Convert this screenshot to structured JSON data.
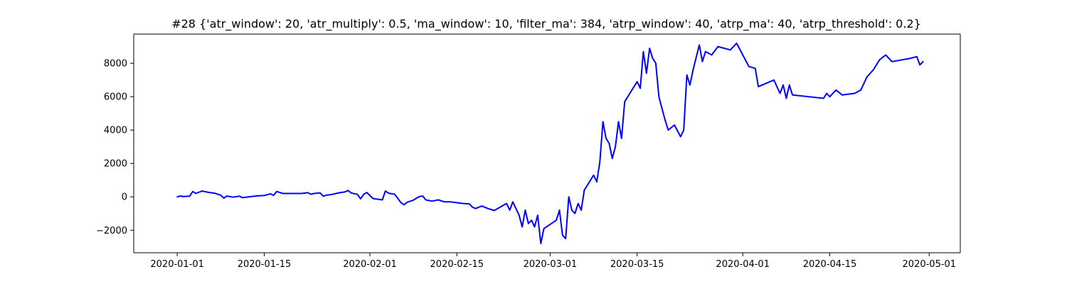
{
  "chart_data": {
    "type": "line",
    "title": "#28 {'atr_window': 20, 'atr_multiply': 0.5, 'ma_window': 10, 'filter_ma': 384, 'atrp_window': 40, 'atrp_ma': 40, 'atrp_threshold': 0.2}",
    "xlabel": "",
    "ylabel": "",
    "x_axis": "date",
    "xlim": [
      "2019-12-25",
      "2020-05-06"
    ],
    "ylim": [
      -3350,
      9750
    ],
    "x_ticks": [
      "2020-01-01",
      "2020-01-15",
      "2020-02-01",
      "2020-02-15",
      "2020-03-01",
      "2020-03-15",
      "2020-04-01",
      "2020-04-15",
      "2020-05-01"
    ],
    "y_ticks": [
      -2000,
      0,
      2000,
      4000,
      6000,
      8000
    ],
    "y_tick_labels": [
      "−2000",
      "0",
      "2000",
      "4000",
      "6000",
      "8000"
    ],
    "grid": false,
    "legend": "none",
    "colors": {
      "line": "#0000ff",
      "axes": "#000000",
      "background": "#ffffff"
    },
    "series": [
      {
        "color": "#0000ff",
        "points": [
          [
            "2020-01-01",
            0
          ],
          [
            "2020-01-01T12:00",
            50
          ],
          [
            "2020-01-02",
            20
          ],
          [
            "2020-01-03",
            40
          ],
          [
            "2020-01-03T12:00",
            320
          ],
          [
            "2020-01-04",
            200
          ],
          [
            "2020-01-05",
            350
          ],
          [
            "2020-01-06",
            270
          ],
          [
            "2020-01-07",
            220
          ],
          [
            "2020-01-08",
            100
          ],
          [
            "2020-01-08T12:00",
            -80
          ],
          [
            "2020-01-09",
            50
          ],
          [
            "2020-01-10",
            -20
          ],
          [
            "2020-01-11",
            40
          ],
          [
            "2020-01-11T12:00",
            -50
          ],
          [
            "2020-01-13",
            20
          ],
          [
            "2020-01-14",
            60
          ],
          [
            "2020-01-15",
            80
          ],
          [
            "2020-01-15T12:00",
            130
          ],
          [
            "2020-01-16",
            180
          ],
          [
            "2020-01-16T12:00",
            90
          ],
          [
            "2020-01-17",
            320
          ],
          [
            "2020-01-18",
            200
          ],
          [
            "2020-01-21",
            200
          ],
          [
            "2020-01-22",
            250
          ],
          [
            "2020-01-22T12:00",
            160
          ],
          [
            "2020-01-23",
            200
          ],
          [
            "2020-01-24",
            230
          ],
          [
            "2020-01-24T12:00",
            40
          ],
          [
            "2020-01-25",
            100
          ],
          [
            "2020-01-26",
            150
          ],
          [
            "2020-01-27",
            240
          ],
          [
            "2020-01-28",
            300
          ],
          [
            "2020-01-28T12:00",
            380
          ],
          [
            "2020-01-29",
            230
          ],
          [
            "2020-01-30",
            150
          ],
          [
            "2020-01-30T12:00",
            -120
          ],
          [
            "2020-01-31",
            150
          ],
          [
            "2020-01-31T12:00",
            260
          ],
          [
            "2020-02-01",
            80
          ],
          [
            "2020-02-01T12:00",
            -100
          ],
          [
            "2020-02-03",
            -180
          ],
          [
            "2020-02-03T12:00",
            350
          ],
          [
            "2020-02-04",
            220
          ],
          [
            "2020-02-05",
            150
          ],
          [
            "2020-02-06",
            -350
          ],
          [
            "2020-02-06T12:00",
            -480
          ],
          [
            "2020-02-07",
            -320
          ],
          [
            "2020-02-08",
            -200
          ],
          [
            "2020-02-08T12:00",
            -80
          ],
          [
            "2020-02-09",
            20
          ],
          [
            "2020-02-09T12:00",
            50
          ],
          [
            "2020-02-10",
            -180
          ],
          [
            "2020-02-11",
            -260
          ],
          [
            "2020-02-12",
            -180
          ],
          [
            "2020-02-13",
            -300
          ],
          [
            "2020-02-14",
            -300
          ],
          [
            "2020-02-16",
            -400
          ],
          [
            "2020-02-17",
            -420
          ],
          [
            "2020-02-17T12:00",
            -620
          ],
          [
            "2020-02-18",
            -700
          ],
          [
            "2020-02-19",
            -550
          ],
          [
            "2020-02-20",
            -700
          ],
          [
            "2020-02-21",
            -820
          ],
          [
            "2020-02-23",
            -400
          ],
          [
            "2020-02-23T12:00",
            -800
          ],
          [
            "2020-02-24",
            -300
          ],
          [
            "2020-02-25",
            -1100
          ],
          [
            "2020-02-25T12:00",
            -1800
          ],
          [
            "2020-02-26",
            -800
          ],
          [
            "2020-02-26T12:00",
            -1600
          ],
          [
            "2020-02-27",
            -1400
          ],
          [
            "2020-02-27T12:00",
            -1800
          ],
          [
            "2020-02-28",
            -1100
          ],
          [
            "2020-02-28T12:00",
            -2800
          ],
          [
            "2020-02-29",
            -1900
          ],
          [
            "2020-03-02",
            -1400
          ],
          [
            "2020-03-02T12:00",
            -800
          ],
          [
            "2020-03-03",
            -2300
          ],
          [
            "2020-03-03T12:00",
            -2500
          ],
          [
            "2020-03-04",
            0
          ],
          [
            "2020-03-04T12:00",
            -800
          ],
          [
            "2020-03-05",
            -1000
          ],
          [
            "2020-03-05T12:00",
            -400
          ],
          [
            "2020-03-06",
            -800
          ],
          [
            "2020-03-06T12:00",
            400
          ],
          [
            "2020-03-08",
            1300
          ],
          [
            "2020-03-08T12:00",
            900
          ],
          [
            "2020-03-09",
            2100
          ],
          [
            "2020-03-09T12:00",
            4500
          ],
          [
            "2020-03-10",
            3500
          ],
          [
            "2020-03-10T12:00",
            3200
          ],
          [
            "2020-03-11",
            2300
          ],
          [
            "2020-03-11T12:00",
            3000
          ],
          [
            "2020-03-12",
            4500
          ],
          [
            "2020-03-12T12:00",
            3500
          ],
          [
            "2020-03-13",
            5700
          ],
          [
            "2020-03-15",
            6900
          ],
          [
            "2020-03-15T12:00",
            6500
          ],
          [
            "2020-03-16",
            8700
          ],
          [
            "2020-03-16T12:00",
            7400
          ],
          [
            "2020-03-17",
            8900
          ],
          [
            "2020-03-17T12:00",
            8300
          ],
          [
            "2020-03-18",
            8000
          ],
          [
            "2020-03-18T12:00",
            6000
          ],
          [
            "2020-03-19",
            5300
          ],
          [
            "2020-03-19T12:00",
            4600
          ],
          [
            "2020-03-20",
            4000
          ],
          [
            "2020-03-21",
            4300
          ],
          [
            "2020-03-22",
            3600
          ],
          [
            "2020-03-22T12:00",
            4000
          ],
          [
            "2020-03-23",
            7300
          ],
          [
            "2020-03-23T12:00",
            6700
          ],
          [
            "2020-03-24",
            7600
          ],
          [
            "2020-03-25",
            9100
          ],
          [
            "2020-03-25T12:00",
            8100
          ],
          [
            "2020-03-26",
            8700
          ],
          [
            "2020-03-27",
            8500
          ],
          [
            "2020-03-28",
            9000
          ],
          [
            "2020-03-30",
            8800
          ],
          [
            "2020-03-31",
            9200
          ],
          [
            "2020-04-01",
            8500
          ],
          [
            "2020-04-02",
            7800
          ],
          [
            "2020-04-03",
            7700
          ],
          [
            "2020-04-03T12:00",
            6600
          ],
          [
            "2020-04-06",
            7000
          ],
          [
            "2020-04-07",
            6200
          ],
          [
            "2020-04-07T12:00",
            6700
          ],
          [
            "2020-04-08",
            5900
          ],
          [
            "2020-04-08T12:00",
            6700
          ],
          [
            "2020-04-09",
            6100
          ],
          [
            "2020-04-14",
            5900
          ],
          [
            "2020-04-14T12:00",
            6200
          ],
          [
            "2020-04-15",
            6000
          ],
          [
            "2020-04-16",
            6400
          ],
          [
            "2020-04-17",
            6100
          ],
          [
            "2020-04-19",
            6200
          ],
          [
            "2020-04-20",
            6400
          ],
          [
            "2020-04-21",
            7200
          ],
          [
            "2020-04-22",
            7600
          ],
          [
            "2020-04-23",
            8200
          ],
          [
            "2020-04-24",
            8500
          ],
          [
            "2020-04-25",
            8100
          ],
          [
            "2020-04-28",
            8300
          ],
          [
            "2020-04-29",
            8400
          ],
          [
            "2020-04-29T12:00",
            7900
          ],
          [
            "2020-04-30",
            8100
          ]
        ]
      }
    ]
  }
}
